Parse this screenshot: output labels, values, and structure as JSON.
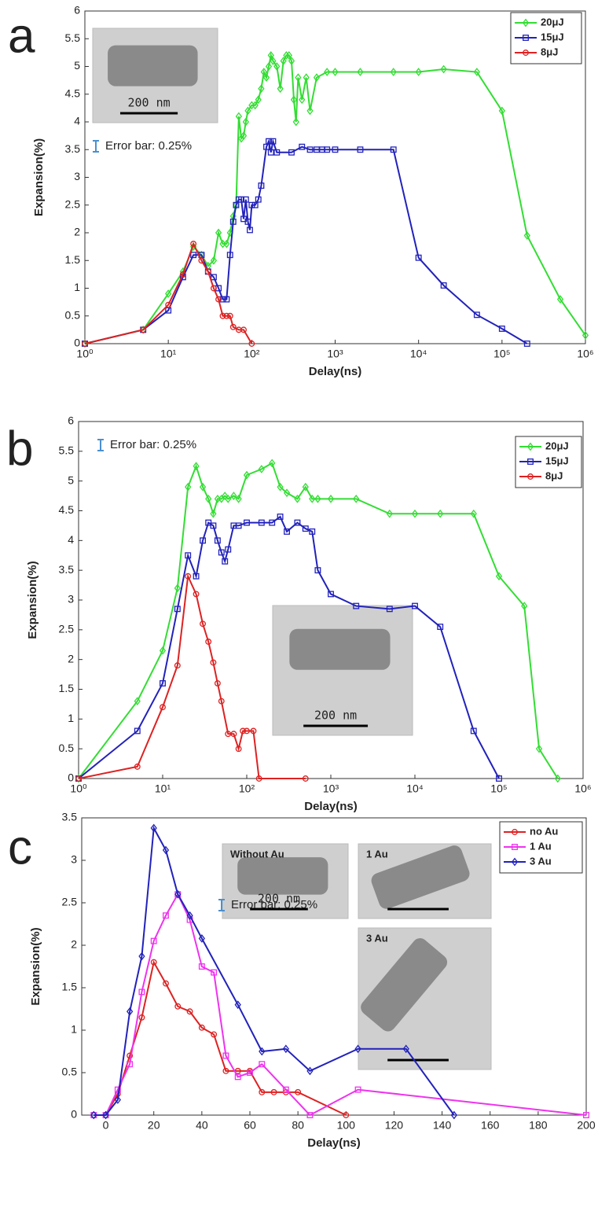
{
  "chart_data": [
    {
      "type": "line",
      "panel_label": "a",
      "xlabel": "Delay(ns)",
      "ylabel": "Expansion(%)",
      "xscale": "log",
      "xlim": [
        1,
        1000000
      ],
      "xticks": [
        {
          "value": 1,
          "label": "10⁰"
        },
        {
          "value": 10,
          "label": "10¹"
        },
        {
          "value": 100,
          "label": "10²"
        },
        {
          "value": 1000,
          "label": "10³"
        },
        {
          "value": 10000,
          "label": "10⁴"
        },
        {
          "value": 100000,
          "label": "10⁵"
        },
        {
          "value": 1000000,
          "label": "10⁶"
        }
      ],
      "ylim": [
        0,
        6
      ],
      "yticks": [
        0,
        0.5,
        1,
        1.5,
        2,
        2.5,
        3,
        3.5,
        4,
        4.5,
        5,
        5.5,
        6
      ],
      "grid": false,
      "legend": "upper right",
      "annotation": "Error bar: 0.25%",
      "insets": [
        {
          "scale_label": "200 nm"
        }
      ],
      "series": [
        {
          "name": "20μJ",
          "color": "#33dd33",
          "marker": "diamond",
          "x": [
            1,
            5,
            10,
            15,
            20,
            25,
            30,
            35,
            40,
            45,
            50,
            55,
            60,
            65,
            70,
            75,
            80,
            85,
            90,
            100,
            110,
            120,
            130,
            140,
            150,
            160,
            170,
            180,
            200,
            220,
            240,
            260,
            280,
            300,
            320,
            340,
            360,
            400,
            450,
            500,
            600,
            800,
            1000,
            2000,
            5000,
            10000,
            20000,
            50000,
            100000,
            200000,
            500000,
            1000000
          ],
          "values": [
            0,
            0.25,
            0.9,
            1.3,
            1.75,
            1.6,
            1.4,
            1.5,
            2.0,
            1.8,
            1.8,
            2.0,
            2.3,
            2.5,
            4.1,
            3.7,
            3.75,
            4.0,
            4.2,
            4.3,
            4.3,
            4.4,
            4.6,
            4.9,
            4.8,
            5.0,
            5.2,
            5.1,
            5.0,
            4.6,
            5.1,
            5.2,
            5.2,
            5.1,
            4.4,
            4.0,
            4.8,
            4.4,
            4.8,
            4.2,
            4.8,
            4.9,
            4.9,
            4.9,
            4.9,
            4.9,
            4.95,
            4.9,
            4.2,
            1.95,
            0.8,
            0.15
          ]
        },
        {
          "name": "15μJ",
          "color": "#2222bb",
          "marker": "square",
          "x": [
            1,
            5,
            10,
            15,
            20,
            25,
            30,
            35,
            40,
            45,
            50,
            55,
            60,
            65,
            70,
            75,
            80,
            85,
            90,
            95,
            100,
            110,
            120,
            130,
            150,
            160,
            170,
            180,
            200,
            300,
            400,
            500,
            600,
            700,
            800,
            1000,
            2000,
            5000,
            10000,
            20000,
            50000,
            100000,
            200000
          ],
          "values": [
            0,
            0.25,
            0.6,
            1.2,
            1.6,
            1.6,
            1.3,
            1.2,
            1.0,
            0.8,
            0.8,
            1.6,
            2.2,
            2.5,
            2.6,
            2.6,
            2.25,
            2.6,
            2.2,
            2.05,
            2.5,
            2.5,
            2.6,
            2.85,
            3.55,
            3.65,
            3.45,
            3.65,
            3.45,
            3.45,
            3.55,
            3.5,
            3.5,
            3.5,
            3.5,
            3.5,
            3.5,
            3.5,
            1.55,
            1.05,
            0.52,
            0.27,
            0
          ]
        },
        {
          "name": "8μJ",
          "color": "#dd2222",
          "marker": "circle",
          "x": [
            1,
            5,
            10,
            15,
            20,
            25,
            30,
            35,
            40,
            45,
            50,
            55,
            60,
            70,
            80,
            100
          ],
          "values": [
            0,
            0.25,
            0.7,
            1.25,
            1.8,
            1.5,
            1.3,
            1.0,
            0.8,
            0.5,
            0.5,
            0.5,
            0.3,
            0.25,
            0.25,
            0
          ]
        }
      ]
    },
    {
      "type": "line",
      "panel_label": "b",
      "xlabel": "Delay(ns)",
      "ylabel": "Expansion(%)",
      "xscale": "log",
      "xlim": [
        1,
        1000000
      ],
      "xticks": [
        {
          "value": 1,
          "label": "10⁰"
        },
        {
          "value": 10,
          "label": "10¹"
        },
        {
          "value": 100,
          "label": "10²"
        },
        {
          "value": 1000,
          "label": "10³"
        },
        {
          "value": 10000,
          "label": "10⁴"
        },
        {
          "value": 100000,
          "label": "10⁵"
        },
        {
          "value": 1000000,
          "label": "10⁶"
        }
      ],
      "ylim": [
        0,
        6
      ],
      "yticks": [
        0,
        0.5,
        1,
        1.5,
        2,
        2.5,
        3,
        3.5,
        4,
        4.5,
        5,
        5.5,
        6
      ],
      "grid": false,
      "legend": "upper right",
      "annotation": "Error bar: 0.25%",
      "insets": [
        {
          "scale_label": "200 nm"
        }
      ],
      "series": [
        {
          "name": "20μJ",
          "color": "#33dd33",
          "marker": "diamond",
          "x": [
            1,
            5,
            10,
            15,
            20,
            25,
            30,
            35,
            40,
            45,
            50,
            55,
            60,
            70,
            80,
            100,
            150,
            200,
            250,
            300,
            400,
            500,
            600,
            700,
            1000,
            2000,
            5000,
            10000,
            20000,
            50000,
            100000,
            200000,
            300000,
            500000
          ],
          "values": [
            0,
            1.3,
            2.15,
            3.2,
            4.9,
            5.25,
            4.9,
            4.7,
            4.45,
            4.7,
            4.7,
            4.75,
            4.7,
            4.75,
            4.7,
            5.1,
            5.2,
            5.3,
            4.9,
            4.8,
            4.7,
            4.9,
            4.7,
            4.7,
            4.7,
            4.7,
            4.45,
            4.45,
            4.45,
            4.45,
            3.4,
            2.9,
            0.5,
            0
          ]
        },
        {
          "name": "15μJ",
          "color": "#2222bb",
          "marker": "square",
          "x": [
            1,
            5,
            10,
            15,
            20,
            25,
            30,
            35,
            40,
            45,
            50,
            55,
            60,
            70,
            80,
            100,
            150,
            200,
            250,
            300,
            400,
            500,
            600,
            700,
            1000,
            2000,
            5000,
            10000,
            20000,
            50000,
            100000
          ],
          "values": [
            0,
            0.8,
            1.6,
            2.85,
            3.75,
            3.4,
            4.0,
            4.3,
            4.25,
            4.0,
            3.8,
            3.65,
            3.85,
            4.25,
            4.25,
            4.3,
            4.3,
            4.3,
            4.4,
            4.15,
            4.3,
            4.2,
            4.15,
            3.5,
            3.1,
            2.9,
            2.85,
            2.9,
            2.55,
            0.8,
            0
          ]
        },
        {
          "name": "8μJ",
          "color": "#dd2222",
          "marker": "circle",
          "x": [
            1,
            5,
            10,
            15,
            20,
            25,
            30,
            35,
            40,
            45,
            50,
            60,
            70,
            80,
            90,
            100,
            120,
            140,
            500
          ],
          "values": [
            0,
            0.2,
            1.2,
            1.9,
            3.4,
            3.1,
            2.6,
            2.3,
            1.95,
            1.6,
            1.3,
            0.75,
            0.75,
            0.5,
            0.8,
            0.8,
            0.8,
            0,
            0
          ]
        }
      ]
    },
    {
      "type": "line",
      "panel_label": "c",
      "xlabel": "Delay(ns)",
      "ylabel": "Expansion(%)",
      "xscale": "linear",
      "xlim": [
        -10,
        200
      ],
      "xticks": [
        0,
        20,
        40,
        60,
        80,
        100,
        120,
        140,
        160,
        180,
        200
      ],
      "ylim": [
        0,
        3.5
      ],
      "yticks": [
        0,
        0.5,
        1,
        1.5,
        2,
        2.5,
        3,
        3.5
      ],
      "grid": false,
      "legend": "upper right",
      "annotation": "Error bar: 0.25%",
      "insets": [
        {
          "label": "Without Au",
          "color": "#e03030",
          "scale_label": "200 nm"
        },
        {
          "label": "1 Au",
          "color": "#e040e0"
        },
        {
          "label": "3 Au",
          "color": "#2222bb"
        }
      ],
      "series": [
        {
          "name": "no Au",
          "color": "#dd2222",
          "marker": "circle",
          "x": [
            -5,
            0,
            5,
            10,
            15,
            20,
            25,
            30,
            35,
            40,
            45,
            50,
            55,
            60,
            65,
            70,
            75,
            80,
            100
          ],
          "values": [
            0,
            0,
            0.25,
            0.7,
            1.15,
            1.8,
            1.55,
            1.28,
            1.22,
            1.03,
            0.95,
            0.52,
            0.52,
            0.52,
            0.27,
            0.27,
            0.27,
            0.27,
            0
          ]
        },
        {
          "name": "1 Au",
          "color": "#ee33ee",
          "marker": "square",
          "x": [
            -5,
            0,
            5,
            10,
            15,
            20,
            25,
            30,
            35,
            40,
            45,
            50,
            55,
            60,
            65,
            75,
            85,
            105,
            200
          ],
          "values": [
            0,
            0,
            0.3,
            0.6,
            1.45,
            2.05,
            2.35,
            2.6,
            2.3,
            1.75,
            1.68,
            0.7,
            0.45,
            0.5,
            0.6,
            0.3,
            0,
            0.3,
            0
          ]
        },
        {
          "name": "3 Au",
          "color": "#2222bb",
          "marker": "diamond",
          "x": [
            -5,
            0,
            5,
            10,
            15,
            20,
            25,
            30,
            35,
            40,
            55,
            65,
            75,
            85,
            105,
            125,
            145
          ],
          "values": [
            0,
            0,
            0.18,
            1.22,
            1.87,
            3.38,
            3.12,
            2.6,
            2.35,
            2.08,
            1.3,
            0.75,
            0.78,
            0.52,
            0.78,
            0.78,
            0
          ]
        }
      ]
    }
  ]
}
